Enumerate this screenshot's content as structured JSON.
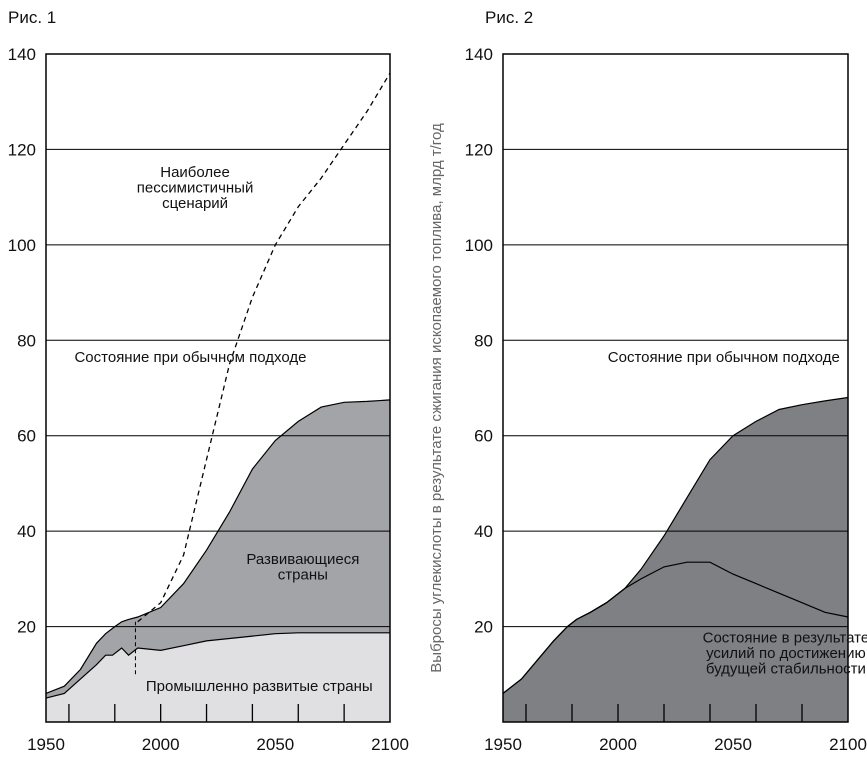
{
  "chart_data": [
    {
      "type": "area",
      "title": "Рис. 1",
      "ylabel": "",
      "xlabel": "",
      "xlim": [
        1950,
        2100
      ],
      "ylim": [
        0,
        140
      ],
      "yticks": [
        20,
        40,
        60,
        80,
        100,
        120,
        140
      ],
      "xticks": [
        1950,
        2000,
        2050,
        2100
      ],
      "grid": "horizontal",
      "series": [
        {
          "name": "Промышленно развитые страны",
          "fill": "#e0e0e2",
          "x": [
            1950,
            1958,
            1965,
            1972,
            1976,
            1979,
            1983,
            1986,
            1990,
            2000,
            2010,
            2020,
            2030,
            2040,
            2050,
            2060,
            2070,
            2080,
            2100
          ],
          "values": [
            5,
            6,
            9,
            12,
            14,
            14,
            15.5,
            14,
            15.5,
            15,
            16,
            17,
            17.5,
            18,
            18.5,
            18.7,
            18.7,
            18.7,
            18.7
          ]
        },
        {
          "name": "Развивающиеся страны",
          "fill": "#a3a4a8",
          "x": [
            1950,
            1958,
            1965,
            1972,
            1976,
            1980,
            1983,
            1986,
            1990,
            2000,
            2010,
            2020,
            2030,
            2040,
            2050,
            2060,
            2070,
            2080,
            2090,
            2100
          ],
          "values": [
            6,
            7.5,
            11,
            16.5,
            18.5,
            20,
            21,
            21.5,
            22,
            24,
            29,
            36,
            44,
            53,
            59,
            63,
            66,
            67,
            67.2,
            67.5
          ]
        },
        {
          "name": "Наиболее пессимистичный сценарий",
          "style": "dashed",
          "x": [
            1990,
            2000,
            2010,
            2020,
            2030,
            2040,
            2050,
            2060,
            2070,
            2080,
            2090,
            2100
          ],
          "values": [
            21,
            25,
            35,
            55,
            75,
            89,
            100,
            108,
            114,
            121,
            128,
            136
          ]
        }
      ],
      "marker_line": {
        "x": 1989,
        "from": 10,
        "to": 21
      },
      "annotations": [
        {
          "lines": [
            "Наиболее",
            "пессимистичный",
            "сценарий"
          ],
          "x": 2015,
          "y": 112
        },
        {
          "lines": [
            "Состояние при обычном подходе"
          ],
          "x": 2013,
          "y": 76.5
        },
        {
          "lines": [
            "Развивающиеся",
            "страны"
          ],
          "x": 2062,
          "y": 32.5
        },
        {
          "lines": [
            "Промышленно развитые страны"
          ],
          "x": 2043,
          "y": 7.5
        }
      ]
    },
    {
      "type": "area",
      "title": "Рис. 2",
      "ylabel": "Выбросы углекислоты в результате сжигания ископаемого топлива, млрд т/год",
      "xlabel": "",
      "xlim": [
        1950,
        2100
      ],
      "ylim": [
        0,
        140
      ],
      "yticks": [
        20,
        40,
        60,
        80,
        100,
        120,
        140
      ],
      "xticks": [
        1950,
        2000,
        2050,
        2100
      ],
      "grid": "horizontal",
      "series": [
        {
          "name": "Состояние при обычном подходе",
          "fill": "#7f8084",
          "x": [
            1950,
            1958,
            1965,
            1972,
            1978,
            1982,
            1988,
            1995,
            2003,
            2010,
            2020,
            2030,
            2040,
            2050,
            2060,
            2070,
            2080,
            2090,
            2100
          ],
          "values": [
            6,
            9,
            13,
            17,
            20,
            21.5,
            23,
            25,
            28,
            32,
            39,
            47,
            55,
            60,
            63,
            65.5,
            66.5,
            67.3,
            68
          ]
        },
        {
          "name": "Состояние в результате усилий по достижению будущей стабильности",
          "fill": "#ffffff",
          "x": [
            1950,
            1958,
            1965,
            1972,
            1978,
            1982,
            1988,
            1995,
            2003,
            2010,
            2020,
            2030,
            2040,
            2050,
            2060,
            2070,
            2080,
            2090,
            2100
          ],
          "values": [
            6,
            9,
            13,
            17,
            20,
            21.5,
            23,
            25,
            28,
            30,
            32.5,
            33.5,
            33.5,
            31,
            29,
            27,
            25,
            23,
            22
          ]
        }
      ],
      "annotations": [
        {
          "lines": [
            "Состояние при обычном подходе"
          ],
          "x": 2046,
          "y": 76.5
        },
        {
          "lines": [
            "Состояние в результате",
            "усилий по достижению",
            "будущей стабильности"
          ],
          "x": 2073,
          "y": 14.5
        }
      ]
    }
  ]
}
